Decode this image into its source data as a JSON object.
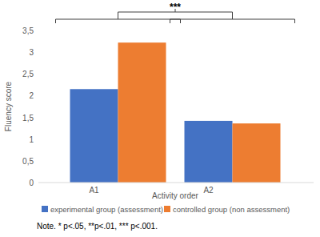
{
  "chart_data": {
    "type": "bar",
    "categories": [
      "A1",
      "A2"
    ],
    "series": [
      {
        "name": "experimental group (assessment)",
        "color": "#4472c4",
        "values": [
          2.15,
          1.42
        ]
      },
      {
        "name": "controlled group (non assessment)",
        "color": "#ed7d31",
        "values": [
          3.22,
          1.36
        ]
      }
    ],
    "x_label": "Activity order",
    "y_label": "Fluency score",
    "ylim": [
      0,
      3.5
    ],
    "yticks": [
      0,
      {
        "value": 0.5,
        "label": "0,5"
      },
      1,
      {
        "value": 1.5,
        "label": "1,5"
      },
      2,
      {
        "value": 2.5,
        "label": "2,5"
      },
      3,
      {
        "value": 3.5,
        "label": "3,5"
      }
    ],
    "annotations": [
      "***",
      "Note. * p<.05, **p<.01, *** p<.001."
    ],
    "grid": false,
    "legend": "bottom"
  }
}
